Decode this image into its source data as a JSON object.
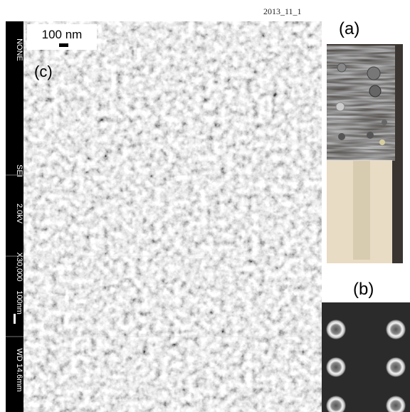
{
  "header": {
    "date": "2013_11_1"
  },
  "panels": {
    "a": {
      "label": "(a)"
    },
    "b": {
      "label": "(b)"
    },
    "c": {
      "label": "(c)",
      "scale_bar": "100 nm",
      "info_bar": [
        "NONE",
        "SEI",
        "2.0kV",
        "X30,000",
        "100nm",
        "WD 14.6mm"
      ]
    }
  }
}
